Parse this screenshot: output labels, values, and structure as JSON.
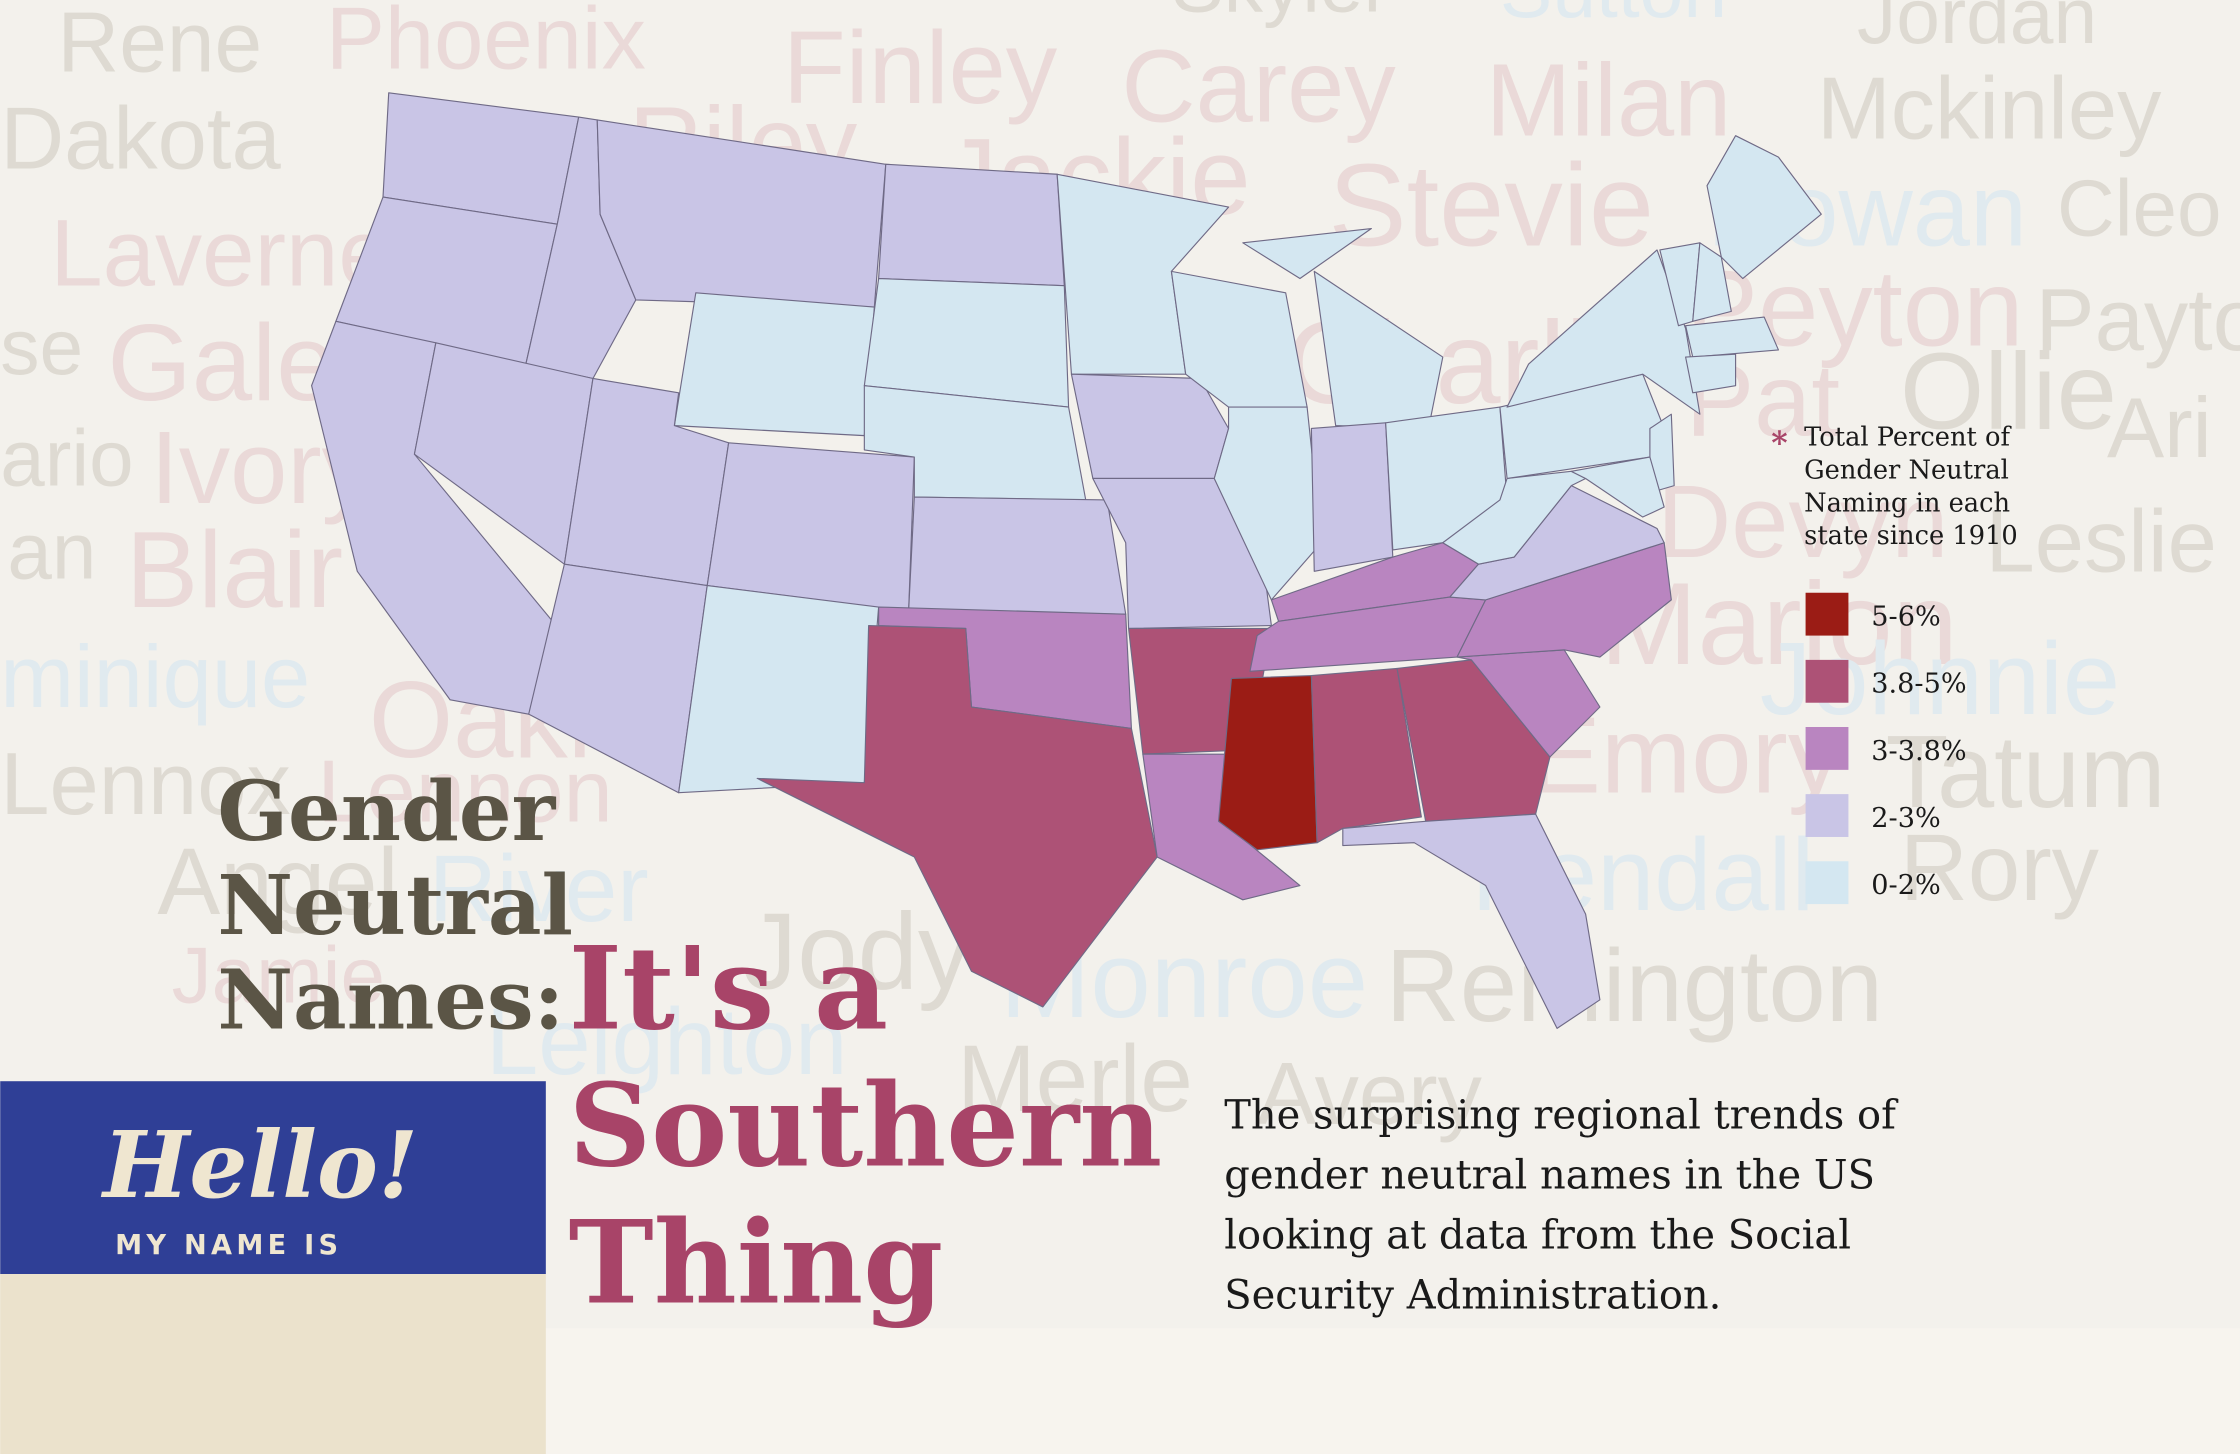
{
  "header": {
    "title_lines": [
      "Gender",
      "Neutral",
      "Names:"
    ],
    "highlight_lines": [
      "It's a",
      "Southern",
      "Thing"
    ]
  },
  "subtitle_lines": [
    "The surprising regional trends of",
    "gender neutral names in the US",
    "looking at data from the Social",
    "Security Administration."
  ],
  "legend": {
    "marker": "*",
    "title_lines": [
      "Total Percent of",
      "Gender Neutral",
      "Naming in each",
      "state since 1910"
    ],
    "items": [
      {
        "label": "5-6%",
        "color": "#9b1c15"
      },
      {
        "label": "3.8-5%",
        "color": "#ad5276"
      },
      {
        "label": "3-3.8%",
        "color": "#b985c0"
      },
      {
        "label": "2-3%",
        "color": "#c9c5e6"
      },
      {
        "label": "0-2%",
        "color": "#d4e7f1"
      }
    ]
  },
  "map": {
    "state_bins": [
      3,
      3,
      3,
      3,
      3,
      4,
      3,
      3,
      3,
      3,
      4,
      3,
      4,
      4,
      3,
      2,
      1,
      4,
      3,
      3,
      1,
      2,
      4,
      4,
      4,
      4,
      3,
      4,
      2,
      2,
      0,
      1,
      1,
      3,
      2,
      2,
      3,
      4,
      4,
      4,
      4,
      4,
      4,
      4,
      4,
      4,
      4
    ]
  },
  "name_tag": {
    "greeting": "Hello!",
    "caption": "MY NAME IS"
  },
  "background_names": [
    "Skyler",
    "Sutton",
    "Rene",
    "Phoenix",
    "Finley",
    "Carey",
    "Milan",
    "Jordan",
    "Mckinley",
    "Dakota",
    "Riley",
    "Jackie",
    "Stevie",
    "Rowan",
    "Cleo",
    "Laverne",
    "Peyton",
    "Payton",
    "se",
    "Gale",
    "Charlie",
    "Pat",
    "Ollie",
    "Ari",
    "ario",
    "Ivory",
    "Devyn",
    "Leslie",
    "an",
    "Blair",
    "Marion",
    "Johnnie",
    "minique",
    "Oakley",
    "Emory",
    "Tatum",
    "Lennox",
    "Lennon",
    "Angel",
    "River",
    "Jody",
    "Rory",
    "Kendall",
    "Jamie",
    "Monroe",
    "Remington",
    "Leighton",
    "Merle",
    "Avery"
  ]
}
